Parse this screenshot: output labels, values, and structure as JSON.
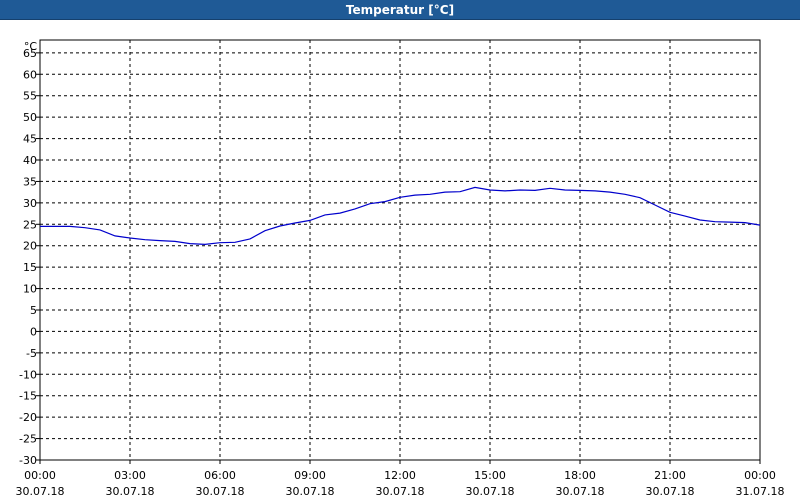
{
  "window": {
    "title": "Temperatur [°C]"
  },
  "chart_data": {
    "type": "line",
    "title": "Temperatur [°C]",
    "ylabel": "°C",
    "xlabel": "",
    "ylim": [
      -30,
      68
    ],
    "y_ticks": [
      65,
      60,
      55,
      50,
      45,
      40,
      35,
      30,
      25,
      20,
      15,
      10,
      5,
      0,
      -5,
      -10,
      -15,
      -20,
      -25,
      -30
    ],
    "x_range_hours": [
      0,
      24
    ],
    "x_ticks": [
      {
        "hour": 0,
        "time": "00:00",
        "date": "30.07.18"
      },
      {
        "hour": 3,
        "time": "03:00",
        "date": "30.07.18"
      },
      {
        "hour": 6,
        "time": "06:00",
        "date": "30.07.18"
      },
      {
        "hour": 9,
        "time": "09:00",
        "date": "30.07.18"
      },
      {
        "hour": 12,
        "time": "12:00",
        "date": "30.07.18"
      },
      {
        "hour": 15,
        "time": "15:00",
        "date": "30.07.18"
      },
      {
        "hour": 18,
        "time": "18:00",
        "date": "30.07.18"
      },
      {
        "hour": 21,
        "time": "21:00",
        "date": "30.07.18"
      },
      {
        "hour": 24,
        "time": "00:00",
        "date": "31.07.18"
      }
    ],
    "grid": true,
    "series": [
      {
        "color": "#0000cc",
        "x": [
          0,
          1,
          1.5,
          2,
          2.5,
          3,
          3.5,
          4,
          4.5,
          5,
          5.5,
          6,
          6.5,
          7,
          7.5,
          8,
          8.5,
          9,
          9.5,
          10,
          10.5,
          11,
          11.5,
          12,
          12.5,
          13,
          13.5,
          14,
          14.5,
          15,
          15.5,
          16,
          16.5,
          17,
          17.5,
          18,
          18.5,
          19,
          19.5,
          20,
          20.5,
          21,
          21.5,
          22,
          22.5,
          23,
          23.5,
          24
        ],
        "y": [
          24.5,
          24.5,
          24.2,
          23.7,
          22.3,
          21.8,
          21.4,
          21.2,
          21.0,
          20.5,
          20.3,
          20.7,
          20.8,
          21.6,
          23.5,
          24.6,
          25.3,
          25.9,
          27.2,
          27.6,
          28.6,
          29.8,
          30.3,
          31.3,
          31.8,
          32.0,
          32.5,
          32.6,
          33.6,
          33.0,
          32.8,
          33.0,
          32.9,
          33.4,
          33.0,
          32.9,
          32.8,
          32.5,
          32.0,
          31.2,
          29.5,
          27.8,
          26.9,
          26.0,
          25.6,
          25.5,
          25.4,
          24.8
        ]
      }
    ]
  }
}
